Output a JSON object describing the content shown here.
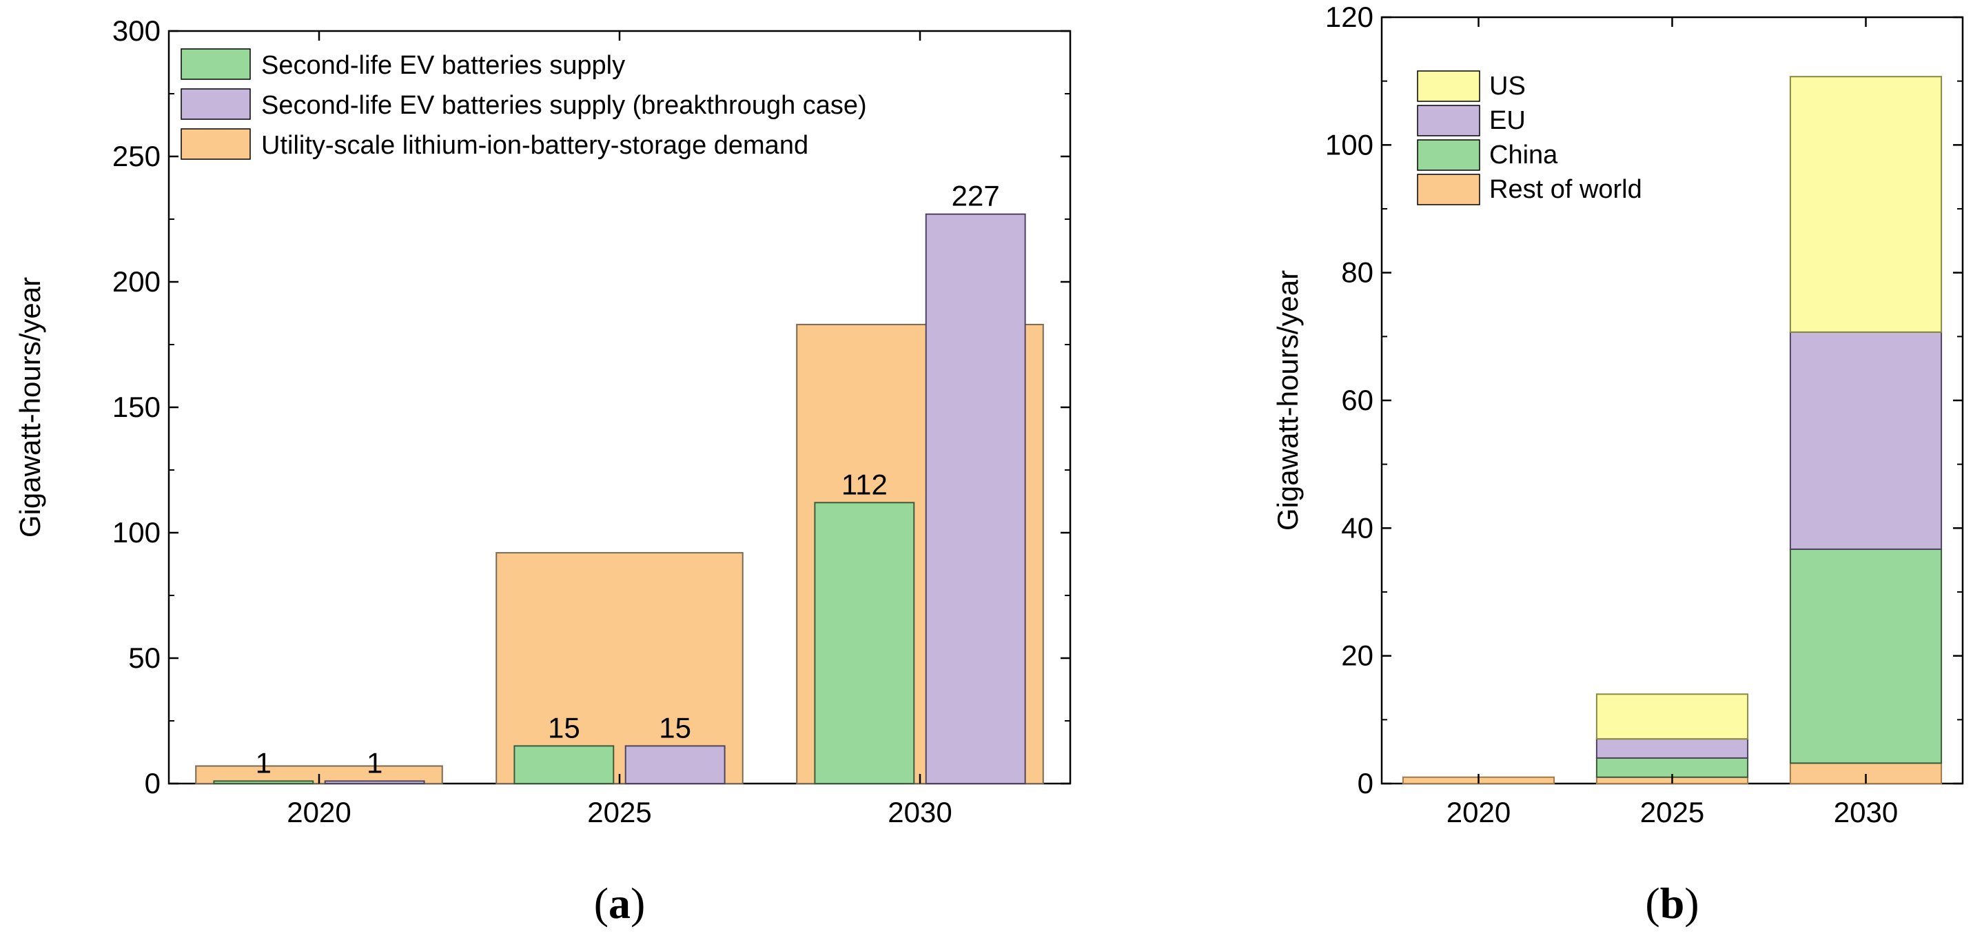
{
  "colors": {
    "green": "#99d89b",
    "purple": "#c6b6dc",
    "orange": "#fcc98d",
    "yellow": "#fdfca4",
    "axis": "#000000"
  },
  "chart_data": [
    {
      "id": "a",
      "type": "bar",
      "panel_label": "(a)",
      "panel_letter": "a",
      "title": "",
      "xlabel": "",
      "ylabel": "Gigawatt-hours/year",
      "ylim": [
        0,
        300
      ],
      "yticks": [
        0,
        50,
        100,
        150,
        200,
        250,
        300
      ],
      "categories": [
        "2020",
        "2025",
        "2030"
      ],
      "series": [
        {
          "name": "Second-life EV batteries supply",
          "color_key": "green",
          "values": [
            1,
            15,
            112
          ],
          "labels": [
            "1",
            "15",
            "112"
          ]
        },
        {
          "name": "Second-life EV batteries supply (breakthrough case)",
          "color_key": "purple",
          "values": [
            1,
            15,
            227
          ],
          "labels": [
            "1",
            "15",
            "227"
          ]
        },
        {
          "name": "Utility-scale lithium-ion-battery-storage demand",
          "color_key": "orange",
          "values": [
            7,
            92,
            183
          ]
        }
      ],
      "legend_position": "top-left"
    },
    {
      "id": "b",
      "type": "bar",
      "stacked": true,
      "panel_label": "(b)",
      "panel_letter": "b",
      "title": "",
      "xlabel": "",
      "ylabel": "Gigawatt-hours/year",
      "ylim": [
        0,
        120
      ],
      "yticks": [
        0,
        20,
        40,
        60,
        80,
        100,
        120
      ],
      "categories": [
        "2020",
        "2025",
        "2030"
      ],
      "series": [
        {
          "name": "Rest of world",
          "color_key": "orange",
          "values": [
            1,
            1,
            3.2
          ]
        },
        {
          "name": "China",
          "color_key": "green",
          "values": [
            0,
            3,
            33.5
          ]
        },
        {
          "name": "EU",
          "color_key": "purple",
          "values": [
            0,
            3,
            34
          ]
        },
        {
          "name": "US",
          "color_key": "yellow",
          "values": [
            0,
            7,
            40
          ]
        }
      ],
      "legend_order": [
        "US",
        "EU",
        "China",
        "Rest of world"
      ],
      "legend_position": "top-left"
    }
  ]
}
